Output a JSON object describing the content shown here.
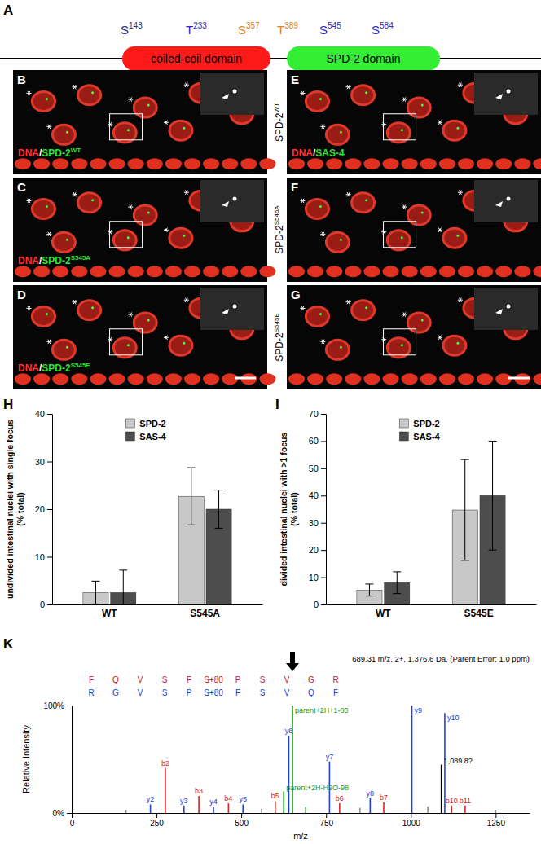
{
  "diagram": {
    "letter": "A",
    "domains": [
      {
        "label": "coiled-coil domain",
        "color": "#ff1a1a"
      },
      {
        "label": "SPD-2 domain",
        "color": "#33ee33"
      }
    ],
    "sites": [
      {
        "residue": "S",
        "number": "143",
        "color": "#2b2b80"
      },
      {
        "residue": "T",
        "number": "233",
        "color": "#2b2bcc"
      },
      {
        "residue": "S",
        "number": "357",
        "color": "#e08020"
      },
      {
        "residue": "T",
        "number": "389",
        "color": "#e08020"
      },
      {
        "residue": "S",
        "number": "545",
        "color": "#2b2bcc"
      },
      {
        "residue": "S",
        "number": "584",
        "color": "#2b2bcc"
      }
    ]
  },
  "image_panels": [
    {
      "letter": "B",
      "stain": [
        {
          "text": "DNA",
          "color": "#ff3030"
        },
        {
          "text": "/",
          "color": "#ffffff"
        },
        {
          "text": "SPD-2",
          "sup": "WT",
          "color": "#30e030"
        }
      ]
    },
    {
      "letter": "C",
      "stain": [
        {
          "text": "DNA",
          "color": "#ff3030"
        },
        {
          "text": "/",
          "color": "#ffffff"
        },
        {
          "text": "SPD-2",
          "sup": "S545A",
          "color": "#30e030"
        }
      ]
    },
    {
      "letter": "D",
      "stain": [
        {
          "text": "DNA",
          "color": "#ff3030"
        },
        {
          "text": "/",
          "color": "#ffffff"
        },
        {
          "text": "SPD-2",
          "sup": "S545E",
          "color": "#30e030"
        }
      ]
    },
    {
      "letter": "E",
      "side_label": {
        "text": "SPD-2",
        "sup": "WT"
      },
      "stain": [
        {
          "text": "DNA",
          "color": "#ff3030"
        },
        {
          "text": "/",
          "color": "#ffffff"
        },
        {
          "text": "SAS-4",
          "color": "#30e030"
        }
      ]
    },
    {
      "letter": "F",
      "side_label": {
        "text": "SPD-2",
        "sup": "S545A"
      }
    },
    {
      "letter": "G",
      "side_label": {
        "text": "SPD-2",
        "sup": "S545E"
      }
    }
  ],
  "chart_data": [
    {
      "panel": "H",
      "type": "bar",
      "ylabel": [
        "undivided intestinal nuclei with single focus",
        "(% total)"
      ],
      "categories": [
        "WT",
        "S545A"
      ],
      "series": [
        {
          "name": "SPD-2",
          "color": "#c8c8c8",
          "values": [
            2.5,
            22.7
          ],
          "errors": [
            2.4,
            6.0
          ]
        },
        {
          "name": "SAS-4",
          "color": "#4d4d4d",
          "values": [
            2.5,
            20.0
          ],
          "errors": [
            4.7,
            4.0
          ]
        }
      ],
      "ylim": [
        0,
        40
      ],
      "yticks": [
        0,
        10,
        20,
        30,
        40
      ],
      "legend": "top",
      "grid": false
    },
    {
      "panel": "I",
      "type": "bar",
      "ylabel": [
        "divided intestinal nuclei with >1 focus",
        "(% total)"
      ],
      "categories": [
        "WT",
        "S545E"
      ],
      "series": [
        {
          "name": "SPD-2",
          "color": "#c8c8c8",
          "values": [
            5.3,
            34.7
          ],
          "errors": [
            2.2,
            18.5
          ]
        },
        {
          "name": "SAS-4",
          "color": "#4d4d4d",
          "values": [
            8.0,
            40.0
          ],
          "errors": [
            4.0,
            20.0
          ]
        }
      ],
      "ylim": [
        0,
        70
      ],
      "yticks": [
        0,
        10,
        20,
        30,
        40,
        50,
        60,
        70
      ],
      "legend": "top",
      "grid": false
    },
    {
      "panel": "K",
      "type": "stem",
      "header": "689.31 m/z, 2+, 1,376.6 Da, (Parent Error: 1.0 ppm)",
      "sequence_top": [
        "F",
        "Q",
        "V",
        "S",
        "F",
        "S+80",
        "P",
        "S",
        "V",
        "G",
        "R"
      ],
      "sequence_bottom": [
        "R",
        "G",
        "V",
        "S",
        "P",
        "S+80",
        "F",
        "S",
        "V",
        "Q",
        "F"
      ],
      "xlabel": "m/z",
      "ylabel": "Relative Intensity",
      "x": [
        160,
        232,
        276,
        331,
        375,
        418,
        462,
        505,
        560,
        600,
        625,
        640,
        651,
        690,
        760,
        790,
        850,
        880,
        920,
        1003,
        1050,
        1089.8,
        1100,
        1120,
        1160,
        1250
      ],
      "values": [
        3,
        8,
        42,
        7,
        16,
        6,
        9,
        8,
        4,
        11,
        20,
        72,
        100,
        6,
        48,
        9,
        5,
        14,
        10,
        100,
        6,
        45,
        93,
        7,
        7,
        3
      ],
      "colors": [
        "#909090",
        "#2040e0",
        "#e02020",
        "#2040e0",
        "#e02020",
        "#2040e0",
        "#e02020",
        "#2040e0",
        "#909090",
        "#e02020",
        "#1a9a1a",
        "#2040e0",
        "#1a9a1a",
        "#1a9a1a",
        "#2040e0",
        "#e02020",
        "#909090",
        "#2040e0",
        "#e02020",
        "#2040e0",
        "#909090",
        "#000000",
        "#2040e0",
        "#e02020",
        "#e02020",
        "#909090"
      ],
      "peak_labels": [
        null,
        "y2",
        "b2",
        "y3",
        "b3",
        "y4",
        "b4",
        "y5",
        null,
        "b5",
        "parent+2H-H2O-98",
        "y6",
        "parent+2H+1-80",
        null,
        "y7",
        "b6",
        null,
        "y8",
        "b7",
        "y9",
        null,
        "1,089.8?",
        "y10",
        "b10",
        "b11",
        null
      ],
      "xlim": [
        0,
        1350
      ],
      "xticks": [
        0,
        250,
        500,
        750,
        1000,
        1250
      ],
      "ylim": [
        0,
        100
      ],
      "yticks": [
        {
          "value": 0,
          "label": "0%"
        },
        {
          "value": 100,
          "label": "100%"
        }
      ]
    }
  ]
}
